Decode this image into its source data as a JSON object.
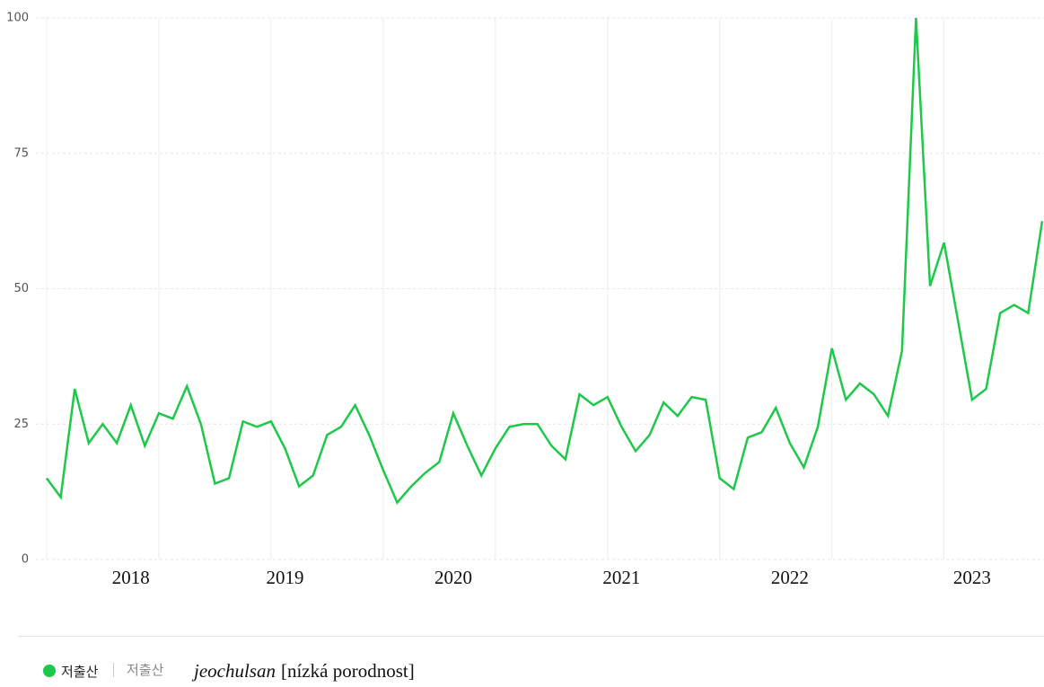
{
  "chart_data": {
    "type": "line",
    "categories": [
      null,
      null,
      null,
      null,
      null,
      null,
      "2018",
      null,
      null,
      null,
      null,
      null,
      null,
      null,
      null,
      null,
      null,
      "2019",
      null,
      null,
      null,
      null,
      null,
      null,
      null,
      null,
      null,
      null,
      null,
      "2020",
      null,
      null,
      null,
      null,
      null,
      null,
      null,
      null,
      null,
      null,
      null,
      "2021",
      null,
      null,
      null,
      null,
      null,
      null,
      null,
      null,
      null,
      null,
      null,
      "2022",
      null,
      null,
      null,
      null,
      null,
      null,
      null,
      null,
      null,
      null,
      null,
      null,
      "2023",
      null,
      null,
      null,
      null,
      null
    ],
    "series": [
      {
        "name": "저출산",
        "color": "#1ec84a",
        "values": [
          15,
          11.5,
          31.5,
          21.5,
          25,
          21.5,
          28.5,
          21,
          27,
          26,
          32,
          25,
          14,
          15,
          25.5,
          24.5,
          25.5,
          20.5,
          13.5,
          15.5,
          23,
          24.5,
          28.5,
          23,
          16.5,
          10.5,
          13.5,
          16,
          18,
          27,
          21,
          15.5,
          20.5,
          24.5,
          25,
          25,
          21,
          18.5,
          30.5,
          28.5,
          30,
          24.5,
          20,
          23,
          29,
          26.5,
          30,
          29.5,
          15,
          13,
          22.5,
          23.5,
          28,
          21.5,
          17,
          24.5,
          39,
          29.5,
          32.5,
          30.5,
          26.5,
          38.5,
          100,
          50.5,
          58.5,
          44,
          29.5,
          31.5,
          45.5,
          47,
          45.5,
          62.5
        ]
      }
    ],
    "ylim": [
      0,
      100
    ],
    "yticks": [
      0,
      25,
      50,
      75,
      100
    ],
    "grid": true,
    "legend_sub": "저출산",
    "legend_note": {
      "term": "jeochulsan",
      "translation": "[nízká porodnost]"
    }
  }
}
